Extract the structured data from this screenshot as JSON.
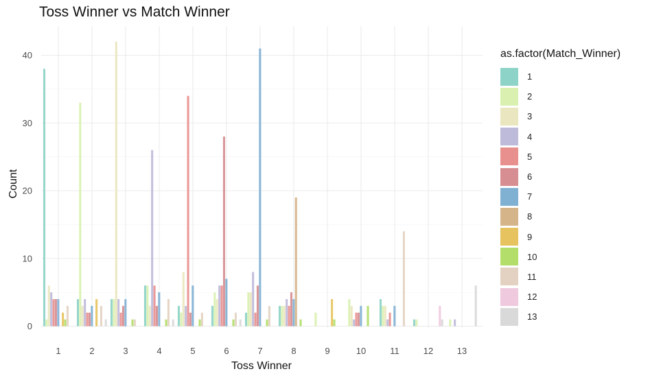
{
  "chart_data": {
    "type": "bar",
    "title": "Toss Winner vs Match Winner",
    "xlabel": "Toss Winner",
    "ylabel": "Count",
    "ylim": [
      0,
      44
    ],
    "yticks": [
      0,
      10,
      20,
      30,
      40
    ],
    "categories": [
      "1",
      "2",
      "3",
      "4",
      "5",
      "6",
      "7",
      "8",
      "9",
      "10",
      "11",
      "12",
      "13"
    ],
    "legend_title": "as.factor(Match_Winner)",
    "legend_position": "right",
    "grid": true,
    "series": [
      {
        "name": "1",
        "color": "#8DD3C7",
        "values": [
          38,
          4,
          4,
          6,
          3,
          3,
          2,
          3,
          0,
          0,
          4,
          1,
          0
        ]
      },
      {
        "name": "2",
        "color": "#D9F0B0",
        "values": [
          1,
          33,
          4,
          6,
          2,
          5,
          5,
          3,
          2,
          4,
          3,
          1,
          1
        ]
      },
      {
        "name": "3",
        "color": "#EAE6BF",
        "values": [
          6,
          3,
          42,
          3,
          8,
          4,
          5,
          3,
          0,
          3,
          3,
          0,
          0
        ]
      },
      {
        "name": "4",
        "color": "#BEBADA",
        "values": [
          5,
          4,
          4,
          26,
          3,
          6,
          8,
          4,
          0,
          1,
          1,
          0,
          1
        ]
      },
      {
        "name": "5",
        "color": "#E8908E",
        "values": [
          4,
          2,
          2,
          6,
          34,
          6,
          2,
          3,
          0,
          2,
          2,
          0,
          0
        ]
      },
      {
        "name": "6",
        "color": "#D68E92",
        "values": [
          4,
          2,
          3,
          3,
          2,
          28,
          6,
          5,
          0,
          2,
          0,
          0,
          0
        ]
      },
      {
        "name": "7",
        "color": "#80B1D3",
        "values": [
          4,
          3,
          4,
          5,
          6,
          7,
          41,
          4,
          0,
          3,
          3,
          0,
          0
        ]
      },
      {
        "name": "8",
        "color": "#D5B48A",
        "values": [
          0,
          0,
          0,
          0,
          0,
          0,
          0,
          19,
          0,
          0,
          0,
          0,
          0
        ]
      },
      {
        "name": "9",
        "color": "#E6C35E",
        "values": [
          2,
          4,
          0,
          0,
          0,
          0,
          0,
          0,
          4,
          0,
          0,
          0,
          0
        ]
      },
      {
        "name": "10",
        "color": "#B3DE69",
        "values": [
          1,
          0,
          1,
          1,
          1,
          1,
          1,
          1,
          1,
          3,
          0,
          0,
          0
        ]
      },
      {
        "name": "11",
        "color": "#E3D2C2",
        "values": [
          3,
          3,
          1,
          4,
          2,
          2,
          3,
          0,
          0,
          0,
          14,
          0,
          0
        ]
      },
      {
        "name": "12",
        "color": "#EFC9DE",
        "values": [
          0,
          0,
          0,
          0,
          0,
          0,
          0,
          0,
          0,
          0,
          0,
          3,
          0
        ]
      },
      {
        "name": "13",
        "color": "#D9D9D9",
        "values": [
          0,
          1,
          0,
          1,
          0,
          1,
          0,
          0,
          0,
          0,
          0,
          1,
          6
        ]
      }
    ]
  }
}
